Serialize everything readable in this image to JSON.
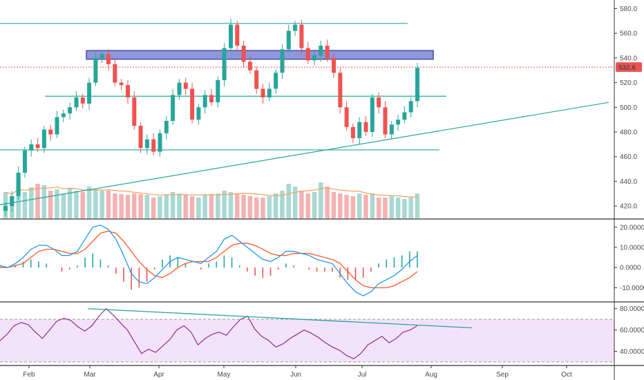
{
  "colors": {
    "up": "#26a69a",
    "down": "#ef5350",
    "up_volume": "#a8d9d2",
    "down_volume": "#f4b2b3",
    "trendline": "#26a69a",
    "resistance_fill": "#7b86d6",
    "resistance_border": "#2b2f8f",
    "price_line": "#ef5350",
    "macd_line": "#2196f3",
    "signal_line": "#ff5722",
    "histogram_up": "#26a69a",
    "histogram_down": "#ef5350",
    "rsi_line": "#8e2d8e",
    "rsi_band": "#f3e3fa",
    "separator": "#333333",
    "volume_ma": "#f5a05a"
  },
  "chart_data": [
    {
      "name": "price",
      "type": "candlestick",
      "y_ticks": [
        "420.0",
        "440.0",
        "460.0",
        "480.0",
        "500.0",
        "520.0",
        "540.0",
        "560.0",
        "580.0"
      ],
      "ylim": [
        410,
        587
      ],
      "last_price": 532.6,
      "last_price_label": "532.6",
      "close_series": [
        420,
        428,
        447,
        465,
        470,
        467,
        482,
        478,
        492,
        495,
        500,
        508,
        503,
        520,
        540,
        543,
        535,
        520,
        518,
        508,
        485,
        467,
        474,
        464,
        479,
        489,
        510,
        520,
        515,
        490,
        500,
        510,
        504,
        522,
        548,
        567,
        550,
        537,
        530,
        515,
        508,
        515,
        528,
        547,
        562,
        567,
        548,
        538,
        542,
        550,
        540,
        528,
        500,
        484,
        475,
        488,
        480,
        508,
        500,
        478,
        486,
        490,
        496,
        505,
        532
      ],
      "horizontal_lines": [
        {
          "role": "top-resistance",
          "y": 568,
          "from": 0.0,
          "to": 0.94
        },
        {
          "role": "mid-support",
          "y": 509,
          "from": 0.11,
          "to": 0.995
        },
        {
          "role": "low-support",
          "y": 465.5,
          "from": 0.0,
          "to": 1.0
        }
      ],
      "resistance_zone": {
        "y_from": 539,
        "y_to": 546,
        "from": 0.2,
        "to": 1.0
      },
      "rising_trendline": {
        "y_start": 421,
        "y_end": 504
      }
    },
    {
      "name": "volume",
      "type": "bar",
      "values": [
        38,
        32,
        55,
        38,
        45,
        50,
        48,
        40,
        42,
        36,
        44,
        40,
        38,
        46,
        42,
        40,
        40,
        36,
        35,
        34,
        36,
        35,
        34,
        30,
        32,
        35,
        38,
        36,
        34,
        32,
        30,
        34,
        35,
        36,
        40,
        38,
        36,
        34,
        32,
        30,
        30,
        32,
        36,
        40,
        50,
        46,
        40,
        36,
        38,
        52,
        46,
        38,
        36,
        34,
        32,
        36,
        34,
        36,
        30,
        30,
        32,
        30,
        28,
        30,
        36
      ]
    },
    {
      "name": "macd",
      "type": "line",
      "y_ticks": [
        "20.0000",
        "10.0000",
        "0.0000",
        "-10.0000"
      ],
      "ylim": [
        -16,
        23
      ],
      "macd": [
        1,
        0,
        2,
        5,
        9,
        11,
        11,
        9,
        6,
        6,
        8,
        14,
        20,
        21,
        19,
        14,
        6,
        -3,
        -7,
        -8,
        -5,
        -1,
        3,
        5,
        4,
        3,
        2,
        5,
        8,
        14,
        16,
        13,
        10,
        7,
        4,
        3,
        5,
        8,
        8,
        7,
        6,
        4,
        3,
        2,
        -3,
        -8,
        -12,
        -14,
        -12,
        -8,
        -6,
        -4,
        -1,
        3,
        6
      ],
      "signal": [
        0,
        0,
        1,
        2,
        5,
        8,
        9,
        9,
        8,
        7,
        7,
        9,
        13,
        17,
        18,
        17,
        13,
        8,
        3,
        -1,
        -4,
        -5,
        -3,
        0,
        2,
        3,
        3,
        3,
        5,
        8,
        11,
        12,
        12,
        11,
        9,
        7,
        6,
        6,
        7,
        7,
        7,
        6,
        5,
        4,
        2,
        -2,
        -6,
        -9,
        -10,
        -10,
        -10,
        -9,
        -7,
        -5,
        -2
      ],
      "histogram": [
        1,
        0,
        1,
        3,
        4,
        3,
        2,
        0,
        -2,
        -1,
        1,
        5,
        7,
        4,
        1,
        -3,
        -7,
        -11,
        -10,
        -7,
        -1,
        4,
        6,
        5,
        2,
        0,
        -1,
        2,
        3,
        6,
        5,
        1,
        -2,
        -4,
        -5,
        -4,
        -1,
        2,
        1,
        0,
        -1,
        -2,
        -2,
        -2,
        -5,
        -6,
        -6,
        -5,
        -2,
        2,
        4,
        5,
        6,
        8,
        8
      ]
    },
    {
      "name": "rsi",
      "type": "line",
      "y_ticks": [
        "80.0000",
        "60.0000",
        "40.0000"
      ],
      "ylim": [
        28,
        85
      ],
      "band": [
        30,
        70
      ],
      "values": [
        50,
        56,
        64,
        67,
        65,
        58,
        52,
        60,
        68,
        71,
        69,
        63,
        59,
        64,
        73,
        80,
        74,
        67,
        60,
        49,
        38,
        42,
        39,
        45,
        51,
        60,
        64,
        58,
        46,
        52,
        56,
        58,
        55,
        63,
        70,
        73,
        61,
        54,
        50,
        44,
        47,
        52,
        56,
        60,
        57,
        53,
        48,
        44,
        41,
        36,
        33,
        38,
        46,
        50,
        54,
        48,
        52,
        58,
        60,
        64
      ],
      "divergence_line": {
        "y_start": 80,
        "y_end": 62
      }
    }
  ],
  "x_axis": {
    "labels": [
      "Feb",
      "Mar",
      "Apr",
      "May",
      "Jun",
      "Jul",
      "Aug",
      "Sep",
      "Oct"
    ]
  }
}
